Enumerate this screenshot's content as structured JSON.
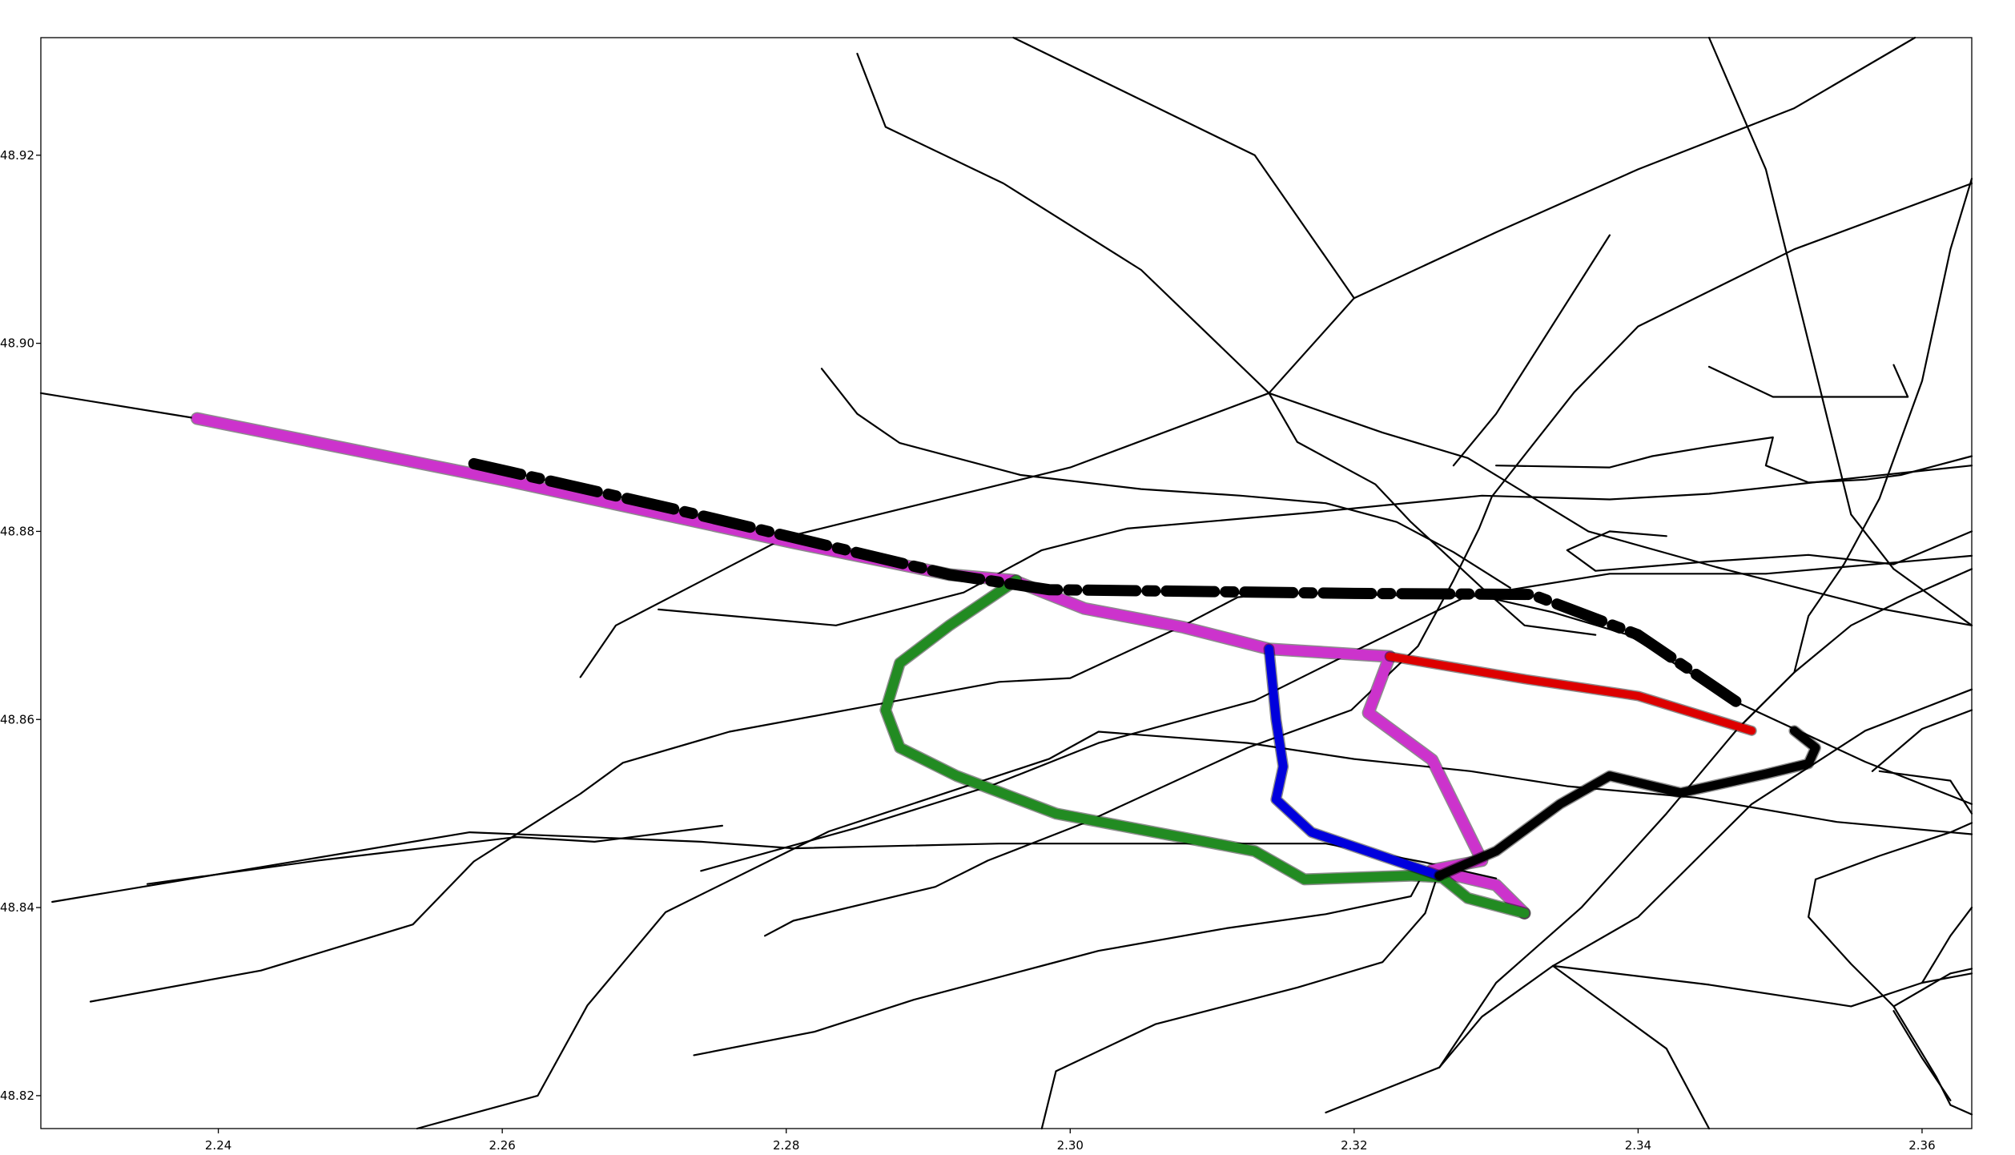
{
  "chart_data": {
    "type": "line",
    "title": "",
    "xlabel": "",
    "ylabel": "",
    "xlim": [
      2.2275,
      2.3635
    ],
    "ylim": [
      48.8165,
      48.9325
    ],
    "grid": false,
    "x_ticks": [
      {
        "value": 2.24,
        "label": "2.24"
      },
      {
        "value": 2.26,
        "label": "2.26"
      },
      {
        "value": 2.28,
        "label": "2.28"
      },
      {
        "value": 2.3,
        "label": "2.30"
      },
      {
        "value": 2.32,
        "label": "2.32"
      },
      {
        "value": 2.34,
        "label": "2.34"
      },
      {
        "value": 2.36,
        "label": "2.36"
      }
    ],
    "y_ticks": [
      {
        "value": 48.82,
        "label": "48.82"
      },
      {
        "value": 48.84,
        "label": "48.84"
      },
      {
        "value": 48.86,
        "label": "48.86"
      },
      {
        "value": 48.88,
        "label": "48.88"
      },
      {
        "value": 48.9,
        "label": "48.90"
      },
      {
        "value": 48.92,
        "label": "48.92"
      }
    ],
    "street_color": "#000000",
    "streets": [
      [
        [
          2.2275,
          48.8947
        ],
        [
          2.2385,
          48.892
        ],
        [
          2.2603,
          48.8854
        ],
        [
          2.2805,
          48.8788
        ],
        [
          2.2915,
          48.8754
        ],
        [
          2.2985,
          48.8738
        ],
        [
          2.306,
          48.8736
        ],
        [
          2.312,
          48.8734
        ],
        [
          2.317,
          48.8734
        ],
        [
          2.323,
          48.8732
        ],
        [
          2.329,
          48.8731
        ],
        [
          2.334,
          48.8714
        ],
        [
          2.3393,
          48.869
        ],
        [
          2.347,
          48.8618
        ],
        [
          2.356,
          48.8555
        ],
        [
          2.3635,
          48.851
        ]
      ],
      [
        [
          2.2283,
          48.8406
        ],
        [
          2.2577,
          48.848
        ],
        [
          2.274,
          48.847
        ],
        [
          2.2805,
          48.8463
        ],
        [
          2.295,
          48.8468
        ],
        [
          2.311,
          48.8468
        ],
        [
          2.318,
          48.8468
        ],
        [
          2.325,
          48.8448
        ],
        [
          2.33,
          48.8431
        ]
      ],
      [
        [
          2.231,
          48.83
        ],
        [
          2.243,
          48.8333
        ],
        [
          2.2537,
          48.8382
        ],
        [
          2.258,
          48.8449
        ],
        [
          2.2655,
          48.8521
        ],
        [
          2.2685,
          48.8554
        ],
        [
          2.276,
          48.8587
        ],
        [
          2.295,
          48.864
        ],
        [
          2.3,
          48.8644
        ],
        [
          2.308,
          48.87
        ],
        [
          2.3118,
          48.873
        ],
        [
          2.3145,
          48.8734
        ]
      ],
      [
        [
          2.235,
          48.8425
        ],
        [
          2.247,
          48.845
        ],
        [
          2.261,
          48.8475
        ],
        [
          2.2665,
          48.847
        ],
        [
          2.2755,
          48.8487
        ]
      ],
      [
        [
          2.254,
          48.8165
        ],
        [
          2.2625,
          48.82
        ],
        [
          2.266,
          48.8296
        ],
        [
          2.2715,
          48.8395
        ],
        [
          2.283,
          48.8481
        ],
        [
          2.2985,
          48.8558
        ],
        [
          2.302,
          48.8587
        ],
        [
          2.3125,
          48.8575
        ],
        [
          2.32,
          48.8558
        ],
        [
          2.3282,
          48.8545
        ],
        [
          2.335,
          48.8529
        ],
        [
          2.344,
          48.8517
        ],
        [
          2.354,
          48.8491
        ],
        [
          2.3635,
          48.8478
        ]
      ],
      [
        [
          2.274,
          48.8439
        ],
        [
          2.285,
          48.8485
        ],
        [
          2.2945,
          48.853
        ],
        [
          2.302,
          48.8575
        ],
        [
          2.313,
          48.862
        ],
        [
          2.3198,
          48.8671
        ],
        [
          2.3278,
          48.873
        ],
        [
          2.338,
          48.8755
        ],
        [
          2.349,
          48.8755
        ],
        [
          2.3635,
          48.8774
        ]
      ],
      [
        [
          2.2785,
          48.837
        ],
        [
          2.2805,
          48.8386
        ],
        [
          2.2905,
          48.8422
        ],
        [
          2.2942,
          48.845
        ],
        [
          2.301,
          48.849
        ],
        [
          2.3125,
          48.857
        ],
        [
          2.3198,
          48.861
        ],
        [
          2.3245,
          48.8678
        ],
        [
          2.327,
          48.8748
        ],
        [
          2.3288,
          48.8803
        ],
        [
          2.3297,
          48.8837
        ],
        [
          2.3355,
          48.8948
        ],
        [
          2.34,
          48.9018
        ],
        [
          2.351,
          48.91
        ],
        [
          2.3635,
          48.917
        ]
      ],
      [
        [
          2.2735,
          48.8243
        ],
        [
          2.282,
          48.8268
        ],
        [
          2.289,
          48.8302
        ],
        [
          2.2985,
          48.834
        ],
        [
          2.302,
          48.8354
        ],
        [
          2.311,
          48.8378
        ],
        [
          2.318,
          48.8393
        ],
        [
          2.324,
          48.8412
        ],
        [
          2.325,
          48.844
        ]
      ],
      [
        [
          2.298,
          48.8165
        ],
        [
          2.299,
          48.8226
        ],
        [
          2.306,
          48.8276
        ],
        [
          2.316,
          48.8315
        ],
        [
          2.322,
          48.8342
        ],
        [
          2.325,
          48.8394
        ],
        [
          2.326,
          48.844
        ]
      ],
      [
        [
          2.318,
          48.8182
        ],
        [
          2.326,
          48.823
        ],
        [
          2.329,
          48.8284
        ],
        [
          2.334,
          48.8338
        ],
        [
          2.34,
          48.839
        ],
        [
          2.343,
          48.8435
        ],
        [
          2.348,
          48.851
        ],
        [
          2.356,
          48.8588
        ],
        [
          2.3635,
          48.8632
        ]
      ],
      [
        [
          2.334,
          48.8338
        ],
        [
          2.342,
          48.825
        ],
        [
          2.345,
          48.8165
        ]
      ],
      [
        [
          2.334,
          48.8338
        ],
        [
          2.345,
          48.8318
        ],
        [
          2.355,
          48.8295
        ],
        [
          2.36,
          48.832
        ],
        [
          2.3635,
          48.833
        ]
      ],
      [
        [
          2.285,
          48.9308
        ],
        [
          2.287,
          48.923
        ],
        [
          2.2953,
          48.917
        ],
        [
          2.305,
          48.9078
        ],
        [
          2.314,
          48.8947
        ],
        [
          2.322,
          48.8905
        ],
        [
          2.328,
          48.8878
        ],
        [
          2.3365,
          48.88
        ],
        [
          2.3455,
          48.8762
        ],
        [
          2.357,
          48.8718
        ],
        [
          2.3635,
          48.87
        ]
      ],
      [
        [
          2.296,
          48.9325
        ],
        [
          2.313,
          48.92
        ],
        [
          2.32,
          48.9048
        ]
      ],
      [
        [
          2.2825,
          48.8973
        ],
        [
          2.285,
          48.8925
        ],
        [
          2.288,
          48.8894
        ],
        [
          2.2965,
          48.886
        ],
        [
          2.305,
          48.8845
        ],
        [
          2.312,
          48.8838
        ],
        [
          2.318,
          48.883
        ],
        [
          2.323,
          48.881
        ],
        [
          2.327,
          48.8778
        ],
        [
          2.331,
          48.874
        ]
      ],
      [
        [
          2.271,
          48.8717
        ],
        [
          2.2835,
          48.87
        ],
        [
          2.2925,
          48.8735
        ],
        [
          2.298,
          48.878
        ],
        [
          2.304,
          48.8803
        ],
        [
          2.317,
          48.882
        ],
        [
          2.329,
          48.8838
        ],
        [
          2.338,
          48.8834
        ],
        [
          2.345,
          48.884
        ],
        [
          2.356,
          48.8858
        ],
        [
          2.3635,
          48.887
        ]
      ],
      [
        [
          2.2655,
          48.8645
        ],
        [
          2.268,
          48.87
        ],
        [
          2.28,
          48.8794
        ],
        [
          2.3,
          48.8868
        ],
        [
          2.314,
          48.8947
        ],
        [
          2.32,
          48.9048
        ],
        [
          2.33,
          48.9118
        ],
        [
          2.34,
          48.9185
        ],
        [
          2.351,
          48.925
        ],
        [
          2.3595,
          48.9325
        ]
      ],
      [
        [
          2.314,
          48.8947
        ],
        [
          2.316,
          48.8895
        ],
        [
          2.3215,
          48.885
        ],
        [
          2.324,
          48.881
        ],
        [
          2.329,
          48.874
        ],
        [
          2.332,
          48.87
        ],
        [
          2.337,
          48.869
        ]
      ],
      [
        [
          2.327,
          48.887
        ],
        [
          2.33,
          48.8925
        ],
        [
          2.338,
          48.9115
        ]
      ],
      [
        [
          2.345,
          48.9325
        ],
        [
          2.349,
          48.9185
        ],
        [
          2.355,
          48.8818
        ],
        [
          2.358,
          48.876
        ],
        [
          2.3635,
          48.87
        ]
      ],
      [
        [
          2.345,
          48.8975
        ],
        [
          2.3495,
          48.8943
        ],
        [
          2.359,
          48.8943
        ],
        [
          2.358,
          48.8977
        ]
      ],
      [
        [
          2.33,
          48.887
        ],
        [
          2.338,
          48.8868
        ],
        [
          2.341,
          48.888
        ],
        [
          2.345,
          48.889
        ],
        [
          2.3495,
          48.89
        ],
        [
          2.349,
          48.887
        ],
        [
          2.352,
          48.8852
        ],
        [
          2.356,
          48.8855
        ],
        [
          2.3585,
          48.886
        ],
        [
          2.3635,
          48.888
        ]
      ],
      [
        [
          2.342,
          48.8795
        ],
        [
          2.338,
          48.88
        ],
        [
          2.335,
          48.878
        ],
        [
          2.337,
          48.8758
        ],
        [
          2.345,
          48.8768
        ],
        [
          2.352,
          48.8775
        ],
        [
          2.358,
          48.8765
        ],
        [
          2.3635,
          48.88
        ]
      ],
      [
        [
          2.3635,
          48.9175
        ],
        [
          2.362,
          48.91
        ],
        [
          2.36,
          48.896
        ],
        [
          2.357,
          48.8835
        ],
        [
          2.3545,
          48.8765
        ],
        [
          2.352,
          48.871
        ],
        [
          2.351,
          48.865
        ],
        [
          2.347,
          48.859
        ],
        [
          2.342,
          48.85
        ],
        [
          2.336,
          48.84
        ],
        [
          2.33,
          48.832
        ],
        [
          2.326,
          48.823
        ]
      ],
      [
        [
          2.347,
          48.859
        ],
        [
          2.351,
          48.865
        ],
        [
          2.355,
          48.87
        ],
        [
          2.359,
          48.873
        ],
        [
          2.3635,
          48.876
        ]
      ],
      [
        [
          2.357,
          48.8545
        ],
        [
          2.362,
          48.8535
        ],
        [
          2.3635,
          48.85
        ]
      ],
      [
        [
          2.3525,
          48.843
        ],
        [
          2.357,
          48.8455
        ],
        [
          2.362,
          48.848
        ],
        [
          2.3635,
          48.849
        ]
      ],
      [
        [
          2.3525,
          48.843
        ],
        [
          2.352,
          48.839
        ],
        [
          2.355,
          48.834
        ],
        [
          2.358,
          48.8295
        ],
        [
          2.361,
          48.822
        ],
        [
          2.362,
          48.819
        ],
        [
          2.3635,
          48.818
        ]
      ],
      [
        [
          2.36,
          48.832
        ],
        [
          2.362,
          48.837
        ],
        [
          2.3635,
          48.84
        ]
      ],
      [
        [
          2.358,
          48.8295
        ],
        [
          2.362,
          48.833
        ],
        [
          2.3635,
          48.8335
        ]
      ],
      [
        [
          2.3565,
          48.8545
        ],
        [
          2.36,
          48.859
        ],
        [
          2.3635,
          48.861
        ]
      ],
      [
        [
          2.362,
          48.8195
        ],
        [
          2.36,
          48.824
        ],
        [
          2.358,
          48.829
        ]
      ]
    ],
    "series": [
      {
        "color": "#cc33cc",
        "points": [
          [
            2.2385,
            48.892
          ],
          [
            2.2603,
            48.8854
          ],
          [
            2.2805,
            48.8788
          ],
          [
            2.2915,
            48.8754
          ],
          [
            2.296,
            48.8748
          ],
          [
            2.301,
            48.8718
          ],
          [
            2.308,
            48.8698
          ],
          [
            2.314,
            48.8675
          ],
          [
            2.3225,
            48.8667
          ],
          [
            2.321,
            48.8607
          ],
          [
            2.3255,
            48.8557
          ],
          [
            2.329,
            48.845
          ],
          [
            2.3255,
            48.844
          ],
          [
            2.33,
            48.8424
          ],
          [
            2.332,
            48.8394
          ]
        ]
      },
      {
        "color": "#228b22",
        "points": [
          [
            2.2962,
            48.8748
          ],
          [
            2.2915,
            48.87
          ],
          [
            2.288,
            48.866
          ],
          [
            2.287,
            48.861
          ],
          [
            2.288,
            48.857
          ],
          [
            2.292,
            48.854
          ],
          [
            2.299,
            48.85
          ],
          [
            2.306,
            48.848
          ],
          [
            2.313,
            48.846
          ],
          [
            2.3165,
            48.843
          ],
          [
            2.324,
            48.8434
          ],
          [
            2.3262,
            48.8432
          ],
          [
            2.328,
            48.841
          ],
          [
            2.332,
            48.8394
          ]
        ]
      },
      {
        "color": "#0000dd",
        "points": [
          [
            2.314,
            48.8675
          ],
          [
            2.3145,
            48.86
          ],
          [
            2.315,
            48.855
          ],
          [
            2.3145,
            48.8515
          ],
          [
            2.317,
            48.848
          ],
          [
            2.326,
            48.8434
          ]
        ]
      },
      {
        "color": "#dd0000",
        "points": [
          [
            2.3225,
            48.8667
          ],
          [
            2.332,
            48.8643
          ],
          [
            2.34,
            48.8625
          ],
          [
            2.348,
            48.8588
          ]
        ]
      },
      {
        "color": "#000000",
        "points": [
          [
            2.326,
            48.8434
          ],
          [
            2.33,
            48.846
          ],
          [
            2.3345,
            48.851
          ],
          [
            2.338,
            48.854
          ],
          [
            2.343,
            48.8522
          ],
          [
            2.349,
            48.8542
          ],
          [
            2.352,
            48.8553
          ],
          [
            2.3525,
            48.857
          ],
          [
            2.351,
            48.8588
          ]
        ]
      },
      {
        "color": "#000000",
        "points": [
          [
            2.258,
            48.8872
          ],
          [
            2.272,
            48.8824
          ],
          [
            2.2915,
            48.8754
          ],
          [
            2.2985,
            48.8738
          ],
          [
            2.31,
            48.8736
          ],
          [
            2.32,
            48.8734
          ],
          [
            2.3325,
            48.8733
          ],
          [
            2.34,
            48.869
          ],
          [
            2.347,
            48.8618
          ]
        ]
      }
    ]
  }
}
